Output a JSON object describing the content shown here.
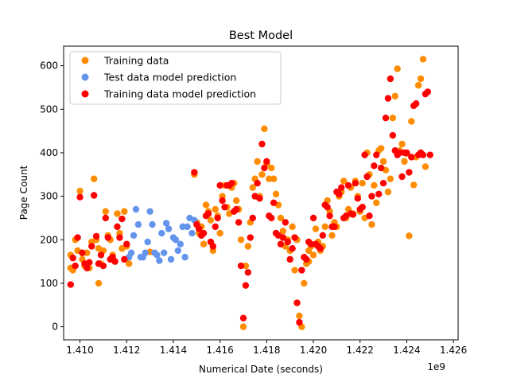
{
  "chart_data": {
    "type": "scatter",
    "title": "Best Model",
    "xlabel": "Numerical Date (seconds)",
    "ylabel": "Page Count",
    "x_offset_label": "1e9",
    "xlim": [
      1.4093,
      1.4262
    ],
    "ylim": [
      -30,
      645
    ],
    "x_ticks": [
      1.41,
      1.412,
      1.414,
      1.416,
      1.418,
      1.42,
      1.422,
      1.424,
      1.426
    ],
    "x_tick_labels": [
      "1.410",
      "1.412",
      "1.414",
      "1.416",
      "1.418",
      "1.420",
      "1.422",
      "1.424",
      "1.426"
    ],
    "y_ticks": [
      0,
      100,
      200,
      300,
      400,
      500,
      600
    ],
    "y_tick_labels": [
      "0",
      "100",
      "200",
      "300",
      "400",
      "500",
      "600"
    ],
    "legend_position": "upper-left",
    "grid": false,
    "series": [
      {
        "name": "Training data",
        "color": "#ff8c00",
        "points": [
          [
            1.4096,
            165
          ],
          [
            1.4097,
            130
          ],
          [
            1.4098,
            200
          ],
          [
            1.4099,
            175
          ],
          [
            1.41,
            312
          ],
          [
            1.4101,
            155
          ],
          [
            1.4102,
            140
          ],
          [
            1.4103,
            170
          ],
          [
            1.4104,
            135
          ],
          [
            1.4105,
            195
          ],
          [
            1.4106,
            340
          ],
          [
            1.4107,
            200
          ],
          [
            1.4108,
            100
          ],
          [
            1.4109,
            145
          ],
          [
            1.411,
            175
          ],
          [
            1.4111,
            265
          ],
          [
            1.4112,
            210
          ],
          [
            1.4113,
            200
          ],
          [
            1.4114,
            165
          ],
          [
            1.4115,
            150
          ],
          [
            1.4116,
            260
          ],
          [
            1.4117,
            215
          ],
          [
            1.4118,
            180
          ],
          [
            1.4119,
            265
          ],
          [
            1.412,
            185
          ],
          [
            1.4121,
            145
          ],
          [
            1.4149,
            350
          ],
          [
            1.415,
            240
          ],
          [
            1.4151,
            215
          ],
          [
            1.4152,
            230
          ],
          [
            1.4153,
            190
          ],
          [
            1.4154,
            280
          ],
          [
            1.4155,
            265
          ],
          [
            1.4156,
            245
          ],
          [
            1.4157,
            175
          ],
          [
            1.4158,
            270
          ],
          [
            1.4159,
            255
          ],
          [
            1.416,
            215
          ],
          [
            1.4161,
            300
          ],
          [
            1.4162,
            325
          ],
          [
            1.4163,
            275
          ],
          [
            1.4164,
            260
          ],
          [
            1.4165,
            320
          ],
          [
            1.4166,
            330
          ],
          [
            1.4167,
            290
          ],
          [
            1.4168,
            270
          ],
          [
            1.4169,
            200
          ],
          [
            1.417,
            0
          ],
          [
            1.4171,
            140
          ],
          [
            1.4172,
            185
          ],
          [
            1.4173,
            240
          ],
          [
            1.4174,
            320
          ],
          [
            1.4175,
            340
          ],
          [
            1.4176,
            380
          ],
          [
            1.4177,
            300
          ],
          [
            1.4178,
            350
          ],
          [
            1.4179,
            455
          ],
          [
            1.418,
            375
          ],
          [
            1.4181,
            340
          ],
          [
            1.4182,
            365
          ],
          [
            1.4183,
            340
          ],
          [
            1.4184,
            305
          ],
          [
            1.4185,
            280
          ],
          [
            1.4186,
            250
          ],
          [
            1.4187,
            220
          ],
          [
            1.4188,
            185
          ],
          [
            1.4189,
            200
          ],
          [
            1.419,
            175
          ],
          [
            1.4191,
            230
          ],
          [
            1.4192,
            130
          ],
          [
            1.4193,
            200
          ],
          [
            1.4194,
            25
          ],
          [
            1.4195,
            0
          ],
          [
            1.4196,
            100
          ],
          [
            1.4197,
            145
          ],
          [
            1.4198,
            175
          ],
          [
            1.4199,
            185
          ],
          [
            1.42,
            165
          ],
          [
            1.4201,
            225
          ],
          [
            1.4202,
            195
          ],
          [
            1.4203,
            175
          ],
          [
            1.4204,
            185
          ],
          [
            1.4205,
            230
          ],
          [
            1.4206,
            290
          ],
          [
            1.4207,
            265
          ],
          [
            1.4208,
            210
          ],
          [
            1.4209,
            240
          ],
          [
            1.421,
            230
          ],
          [
            1.4211,
            300
          ],
          [
            1.4212,
            310
          ],
          [
            1.4213,
            335
          ],
          [
            1.4214,
            250
          ],
          [
            1.4215,
            270
          ],
          [
            1.4216,
            320
          ],
          [
            1.4217,
            260
          ],
          [
            1.4218,
            335
          ],
          [
            1.4219,
            300
          ],
          [
            1.422,
            265
          ],
          [
            1.4221,
            275
          ],
          [
            1.4222,
            250
          ],
          [
            1.4223,
            400
          ],
          [
            1.4224,
            350
          ],
          [
            1.4225,
            235
          ],
          [
            1.4226,
            325
          ],
          [
            1.4227,
            285
          ],
          [
            1.4228,
            405
          ],
          [
            1.4229,
            410
          ],
          [
            1.423,
            380
          ],
          [
            1.4231,
            360
          ],
          [
            1.4232,
            310
          ],
          [
            1.4233,
            340
          ],
          [
            1.4234,
            480
          ],
          [
            1.4235,
            530
          ],
          [
            1.4236,
            593
          ],
          [
            1.4237,
            405
          ],
          [
            1.4238,
            420
          ],
          [
            1.4239,
            380
          ],
          [
            1.424,
            398
          ],
          [
            1.4241,
            209
          ],
          [
            1.4242,
            472
          ],
          [
            1.4243,
            326
          ],
          [
            1.4244,
            390
          ],
          [
            1.4245,
            555
          ],
          [
            1.4246,
            570
          ],
          [
            1.4247,
            615
          ],
          [
            1.4248,
            368
          ],
          [
            1.4096,
            135
          ],
          [
            1.4108,
            180
          ],
          [
            1.413,
            172
          ],
          [
            1.4198,
            150
          ],
          [
            1.4221,
            330
          ]
        ]
      },
      {
        "name": "Test data model prediction",
        "color": "#6495ed",
        "points": [
          [
            1.4121,
            160
          ],
          [
            1.4122,
            170
          ],
          [
            1.4123,
            210
          ],
          [
            1.4124,
            270
          ],
          [
            1.4125,
            235
          ],
          [
            1.4126,
            160
          ],
          [
            1.4127,
            160
          ],
          [
            1.4128,
            170
          ],
          [
            1.4129,
            195
          ],
          [
            1.413,
            265
          ],
          [
            1.4131,
            235
          ],
          [
            1.4132,
            170
          ],
          [
            1.4133,
            165
          ],
          [
            1.4134,
            152
          ],
          [
            1.4135,
            215
          ],
          [
            1.4136,
            170
          ],
          [
            1.4137,
            238
          ],
          [
            1.4138,
            225
          ],
          [
            1.4139,
            155
          ],
          [
            1.414,
            205
          ],
          [
            1.4141,
            200
          ],
          [
            1.4142,
            175
          ],
          [
            1.4143,
            190
          ],
          [
            1.4144,
            230
          ],
          [
            1.4145,
            160
          ],
          [
            1.4146,
            230
          ],
          [
            1.4147,
            250
          ],
          [
            1.4148,
            215
          ],
          [
            1.4149,
            245
          ]
        ]
      },
      {
        "name": "Training data model prediction",
        "color": "#ff0000",
        "points": [
          [
            1.4096,
            97
          ],
          [
            1.4097,
            158
          ],
          [
            1.4098,
            140
          ],
          [
            1.4099,
            205
          ],
          [
            1.41,
            298
          ],
          [
            1.4101,
            170
          ],
          [
            1.4102,
            145
          ],
          [
            1.4103,
            135
          ],
          [
            1.4104,
            148
          ],
          [
            1.4105,
            185
          ],
          [
            1.4106,
            302
          ],
          [
            1.4107,
            208
          ],
          [
            1.4108,
            145
          ],
          [
            1.4109,
            165
          ],
          [
            1.411,
            140
          ],
          [
            1.4111,
            250
          ],
          [
            1.4112,
            205
          ],
          [
            1.4113,
            155
          ],
          [
            1.4114,
            160
          ],
          [
            1.4115,
            150
          ],
          [
            1.4116,
            230
          ],
          [
            1.4117,
            205
          ],
          [
            1.4118,
            248
          ],
          [
            1.4119,
            155
          ],
          [
            1.412,
            190
          ],
          [
            1.4149,
            355
          ],
          [
            1.415,
            235
          ],
          [
            1.4151,
            225
          ],
          [
            1.4152,
            210
          ],
          [
            1.4153,
            215
          ],
          [
            1.4154,
            255
          ],
          [
            1.4155,
            260
          ],
          [
            1.4156,
            195
          ],
          [
            1.4157,
            185
          ],
          [
            1.4158,
            230
          ],
          [
            1.4159,
            250
          ],
          [
            1.416,
            325
          ],
          [
            1.4161,
            290
          ],
          [
            1.4162,
            275
          ],
          [
            1.4163,
            325
          ],
          [
            1.4164,
            325
          ],
          [
            1.4165,
            330
          ],
          [
            1.4166,
            265
          ],
          [
            1.4167,
            270
          ],
          [
            1.4168,
            240
          ],
          [
            1.4169,
            140
          ],
          [
            1.417,
            20
          ],
          [
            1.4171,
            95
          ],
          [
            1.4172,
            125
          ],
          [
            1.4173,
            205
          ],
          [
            1.4174,
            250
          ],
          [
            1.4175,
            300
          ],
          [
            1.4176,
            330
          ],
          [
            1.4177,
            295
          ],
          [
            1.4178,
            420
          ],
          [
            1.4179,
            365
          ],
          [
            1.418,
            380
          ],
          [
            1.4181,
            255
          ],
          [
            1.4182,
            250
          ],
          [
            1.4183,
            285
          ],
          [
            1.4184,
            215
          ],
          [
            1.4185,
            210
          ],
          [
            1.4186,
            190
          ],
          [
            1.4187,
            205
          ],
          [
            1.4188,
            240
          ],
          [
            1.4189,
            195
          ],
          [
            1.419,
            155
          ],
          [
            1.4191,
            180
          ],
          [
            1.4192,
            205
          ],
          [
            1.4193,
            55
          ],
          [
            1.4194,
            10
          ],
          [
            1.4195,
            130
          ],
          [
            1.4196,
            160
          ],
          [
            1.4197,
            155
          ],
          [
            1.4198,
            195
          ],
          [
            1.4199,
            190
          ],
          [
            1.42,
            250
          ],
          [
            1.4201,
            190
          ],
          [
            1.4202,
            185
          ],
          [
            1.4203,
            180
          ],
          [
            1.4204,
            210
          ],
          [
            1.4205,
            280
          ],
          [
            1.4206,
            275
          ],
          [
            1.4207,
            255
          ],
          [
            1.4208,
            230
          ],
          [
            1.4209,
            230
          ],
          [
            1.421,
            310
          ],
          [
            1.4211,
            305
          ],
          [
            1.4212,
            320
          ],
          [
            1.4213,
            250
          ],
          [
            1.4214,
            255
          ],
          [
            1.4215,
            325
          ],
          [
            1.4216,
            260
          ],
          [
            1.4217,
            258
          ],
          [
            1.4218,
            330
          ],
          [
            1.4219,
            295
          ],
          [
            1.422,
            270
          ],
          [
            1.4221,
            275
          ],
          [
            1.4222,
            395
          ],
          [
            1.4223,
            345
          ],
          [
            1.4224,
            255
          ],
          [
            1.4225,
            300
          ],
          [
            1.4226,
            370
          ],
          [
            1.4227,
            395
          ],
          [
            1.4228,
            305
          ],
          [
            1.4229,
            365
          ],
          [
            1.423,
            330
          ],
          [
            1.4231,
            480
          ],
          [
            1.4232,
            525
          ],
          [
            1.4233,
            570
          ],
          [
            1.4234,
            440
          ],
          [
            1.4235,
            405
          ],
          [
            1.4236,
            395
          ],
          [
            1.4237,
            400
          ],
          [
            1.4238,
            345
          ],
          [
            1.4239,
            400
          ],
          [
            1.424,
            400
          ],
          [
            1.4241,
            355
          ],
          [
            1.4242,
            390
          ],
          [
            1.4243,
            508
          ],
          [
            1.4244,
            513
          ],
          [
            1.4245,
            395
          ],
          [
            1.4246,
            400
          ],
          [
            1.4247,
            395
          ],
          [
            1.4248,
            535
          ],
          [
            1.4249,
            540
          ],
          [
            1.425,
            395
          ]
        ]
      }
    ]
  }
}
